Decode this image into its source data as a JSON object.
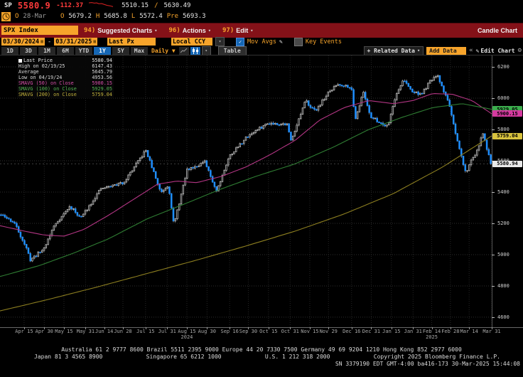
{
  "titlebar": {
    "ticker": "SP",
    "last": "5580.9",
    "change": "-112.37",
    "range_low": "5510.15",
    "slash": "/",
    "range_high": "5630.49",
    "sparkline": [
      [
        0,
        2
      ],
      [
        4,
        1.6
      ],
      [
        8,
        2.4
      ],
      [
        11,
        2.0
      ],
      [
        14,
        3.2
      ],
      [
        18,
        3.0
      ],
      [
        22,
        4.4
      ],
      [
        26,
        5.6
      ],
      [
        30,
        6.2
      ],
      [
        34,
        7.4
      ]
    ],
    "row2": {
      "k1": "O",
      "date": "28-Mar",
      "k2": "O",
      "open": "5679.2",
      "k3": "H",
      "high": "5685.8",
      "k4": "L",
      "low": "5572.4",
      "k5": "Pre",
      "prev": "5693.3"
    }
  },
  "menubar": {
    "security": "SPX Index",
    "items": [
      {
        "num": "94)",
        "label": "Suggested Charts"
      },
      {
        "num": "96)",
        "label": "Actions"
      },
      {
        "num": "97)",
        "label": "Edit"
      }
    ],
    "right_label": "Candle Chart"
  },
  "settings": {
    "date_from": "03/30/2024",
    "date_to": "03/31/2025",
    "field": "Last Px",
    "currency": "Local CCY",
    "mov_avgs_label": "Mov Avgs",
    "key_events_label": "Key Events"
  },
  "toolbar": {
    "periods": [
      "1D",
      "3D",
      "1M",
      "6M",
      "YTD",
      "1Y",
      "5Y",
      "Max"
    ],
    "selected_period": "1Y",
    "interval": "Daily",
    "table_label": "Table",
    "related_data_label": "+ Related Data",
    "add_data_value": "Add Data",
    "collapse_label": "«",
    "edit_chart_label": "Edit Chart"
  },
  "legend": {
    "rows": [
      {
        "marker": "square",
        "color": "#e8e8e8",
        "label": "Last Price",
        "value": "5580.94"
      },
      {
        "marker": "none",
        "color": "#d8d8d8",
        "label": "High on 02/19/25",
        "value": "6147.43"
      },
      {
        "marker": "none",
        "color": "#d8d8d8",
        "label": "Average",
        "value": "5645.79"
      },
      {
        "marker": "none",
        "color": "#d8d8d8",
        "label": "Low on 04/19/24",
        "value": "4953.56"
      },
      {
        "marker": "none",
        "color": "#d64fa8",
        "label": "SMAVG (50)  on Close",
        "value": "5900.15"
      },
      {
        "marker": "none",
        "color": "#54b354",
        "label": "SMAVG (100)  on Close",
        "value": "5929.05"
      },
      {
        "marker": "none",
        "color": "#c2b23c",
        "label": "SMAVG (200)  on Close",
        "value": "5759.04"
      }
    ]
  },
  "chart_data": {
    "type": "candlestick",
    "symbol": "SPX Index",
    "range": "03/30/2024 - 03/31/2025",
    "ylim": {
      "top": 6273,
      "bottom": 4536
    },
    "y_ticks": [
      6200,
      6000,
      5800,
      5600,
      5400,
      5200,
      5000,
      4800,
      4600
    ],
    "x_ticks": [
      {
        "label": "Apr 15",
        "t": 0.049
      },
      {
        "label": "Apr 30",
        "t": 0.09
      },
      {
        "label": "May 15",
        "t": 0.13
      },
      {
        "label": "May 31",
        "t": 0.174
      },
      {
        "label": "Jun 14",
        "t": 0.212
      },
      {
        "label": "Jun 28",
        "t": 0.25
      },
      {
        "label": "Jul 15",
        "t": 0.296
      },
      {
        "label": "Jul 31",
        "t": 0.34
      },
      {
        "label": "Aug 15",
        "t": 0.38
      },
      {
        "label": "Aug 30",
        "t": 0.421
      },
      {
        "label": "Sep 16",
        "t": 0.467
      },
      {
        "label": "Sep 30",
        "t": 0.505
      },
      {
        "label": "Oct 15",
        "t": 0.546
      },
      {
        "label": "Oct 31",
        "t": 0.59
      },
      {
        "label": "Nov 15",
        "t": 0.63
      },
      {
        "label": "Nov 29",
        "t": 0.668
      },
      {
        "label": "Dec 16",
        "t": 0.715
      },
      {
        "label": "Dec 31",
        "t": 0.755
      },
      {
        "label": "Jan 15",
        "t": 0.796
      },
      {
        "label": "Jan 31",
        "t": 0.84
      },
      {
        "label": "Feb 14",
        "t": 0.878
      },
      {
        "label": "Feb 28",
        "t": 0.916
      },
      {
        "label": "Mar 14",
        "t": 0.954
      },
      {
        "label": "Mar 31",
        "t": 1.0
      }
    ],
    "year_marks": [
      {
        "label": "2024",
        "t": 0.38
      },
      {
        "label": "2025",
        "t": 0.878
      }
    ],
    "candles": {
      "count": 251,
      "seed": 11,
      "noise_close": 9,
      "noise_wick": 11,
      "last_close": 5580.94,
      "up_color": "#bdbdbd",
      "down_color": "#1f8fff",
      "wick_color": "#a8a8a8",
      "close_anchors": [
        [
          0.0,
          5254
        ],
        [
          0.027,
          5205
        ],
        [
          0.049,
          5062
        ],
        [
          0.06,
          4967
        ],
        [
          0.087,
          5036
        ],
        [
          0.109,
          5188
        ],
        [
          0.141,
          5308
        ],
        [
          0.163,
          5235
        ],
        [
          0.204,
          5421
        ],
        [
          0.25,
          5460
        ],
        [
          0.296,
          5667
        ],
        [
          0.326,
          5399
        ],
        [
          0.342,
          5446
        ],
        [
          0.353,
          5186
        ],
        [
          0.38,
          5543
        ],
        [
          0.416,
          5592
        ],
        [
          0.44,
          5408
        ],
        [
          0.467,
          5633
        ],
        [
          0.505,
          5762
        ],
        [
          0.546,
          5842
        ],
        [
          0.584,
          5833
        ],
        [
          0.592,
          5729
        ],
        [
          0.622,
          5984
        ],
        [
          0.641,
          5917
        ],
        [
          0.668,
          6032
        ],
        [
          0.687,
          6090
        ],
        [
          0.715,
          6074
        ],
        [
          0.723,
          5867
        ],
        [
          0.74,
          6038
        ],
        [
          0.755,
          5882
        ],
        [
          0.782,
          5827
        ],
        [
          0.791,
          5836
        ],
        [
          0.804,
          5997
        ],
        [
          0.821,
          6119
        ],
        [
          0.84,
          6041
        ],
        [
          0.859,
          6026
        ],
        [
          0.878,
          6115
        ],
        [
          0.891,
          6144
        ],
        [
          0.916,
          5955
        ],
        [
          0.927,
          5778
        ],
        [
          0.941,
          5615
        ],
        [
          0.949,
          5521
        ],
        [
          0.962,
          5615
        ],
        [
          0.973,
          5668
        ],
        [
          0.984,
          5777
        ],
        [
          1.0,
          5581
        ]
      ]
    },
    "moving_averages": [
      {
        "name": "SMAVG (50) on Close",
        "color": "#b23583",
        "anchors": [
          [
            0,
            5185
          ],
          [
            0.05,
            5150
          ],
          [
            0.09,
            5125
          ],
          [
            0.13,
            5118
          ],
          [
            0.17,
            5160
          ],
          [
            0.22,
            5250
          ],
          [
            0.27,
            5350
          ],
          [
            0.32,
            5450
          ],
          [
            0.36,
            5470
          ],
          [
            0.4,
            5460
          ],
          [
            0.45,
            5500
          ],
          [
            0.5,
            5560
          ],
          [
            0.55,
            5640
          ],
          [
            0.6,
            5730
          ],
          [
            0.65,
            5860
          ],
          [
            0.7,
            5940
          ],
          [
            0.75,
            5985
          ],
          [
            0.8,
            5965
          ],
          [
            0.84,
            5985
          ],
          [
            0.88,
            6030
          ],
          [
            0.92,
            6025
          ],
          [
            0.96,
            5985
          ],
          [
            1.0,
            5900
          ]
        ]
      },
      {
        "name": "SMAVG (100) on Close",
        "color": "#2f7d33",
        "anchors": [
          [
            0,
            4860
          ],
          [
            0.08,
            4930
          ],
          [
            0.15,
            5010
          ],
          [
            0.22,
            5100
          ],
          [
            0.3,
            5230
          ],
          [
            0.38,
            5330
          ],
          [
            0.45,
            5420
          ],
          [
            0.52,
            5500
          ],
          [
            0.6,
            5580
          ],
          [
            0.68,
            5690
          ],
          [
            0.75,
            5800
          ],
          [
            0.82,
            5880
          ],
          [
            0.88,
            5940
          ],
          [
            0.94,
            5965
          ],
          [
            1.0,
            5929
          ]
        ]
      },
      {
        "name": "SMAVG (200) on Close",
        "color": "#8d7f20",
        "anchors": [
          [
            0,
            4640
          ],
          [
            0.1,
            4715
          ],
          [
            0.2,
            4795
          ],
          [
            0.3,
            4880
          ],
          [
            0.4,
            4965
          ],
          [
            0.5,
            5055
          ],
          [
            0.6,
            5150
          ],
          [
            0.7,
            5260
          ],
          [
            0.8,
            5390
          ],
          [
            0.9,
            5560
          ],
          [
            0.96,
            5680
          ],
          [
            1.0,
            5759
          ]
        ]
      }
    ],
    "last_price_line": {
      "price": 5580.94,
      "color": "#bbbbbb"
    },
    "price_badges": [
      {
        "value": "5929.05",
        "price": 5929.05,
        "bg": "#3cae4d",
        "fg": "#000000"
      },
      {
        "value": "5900.15",
        "price": 5900.15,
        "bg": "#d63aa0",
        "fg": "#000000"
      },
      {
        "value": "5759.04",
        "price": 5759.04,
        "bg": "#d8c23e",
        "fg": "#000000"
      },
      {
        "value": "5580.94",
        "price": 5580.94,
        "bg": "#e9e9e9",
        "fg": "#000000"
      }
    ],
    "grid": {
      "h_color": "#2e2e2e",
      "v_color": "#262626"
    }
  },
  "footer": {
    "line1": "Australia 61 2 9777 8600 Brazil 5511 2395 9000 Europe 44 20 7330 7500 Germany 49 69 9204 1210 Hong Kong 852 2977 6000",
    "line2_items": [
      "Japan 81 3 4565 8900",
      "Singapore 65 6212 1000",
      "U.S. 1 212 318 2000",
      "Copyright 2025 Bloomberg Finance L.P."
    ],
    "line3": "SN 3379190 EDT  GMT-4:00 ba416-173 30-Mar-2025 15:44:08"
  }
}
